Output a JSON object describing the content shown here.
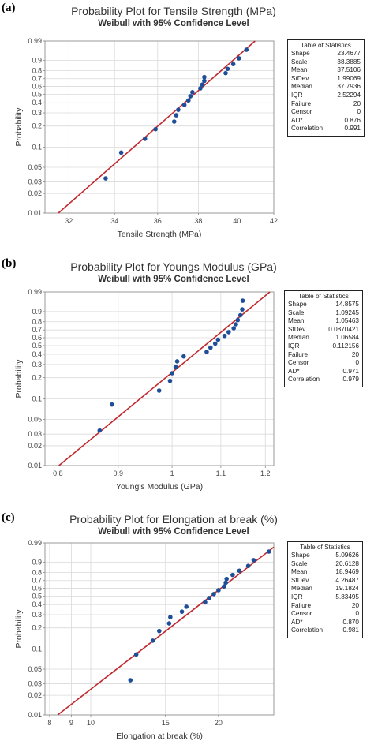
{
  "colors": {
    "fit_line": "#c0282d",
    "points": "#1f4e99",
    "grid": "#dadada"
  },
  "chart_data": [
    {
      "type": "scatter",
      "panel_label": "(a)",
      "title": "Probability Plot for Tensile Strength (MPa)",
      "subtitle": "Weibull with 95% Confidence Level",
      "xlabel": "Tensile Strength (MPa)",
      "ylabel": "Probability",
      "xscale": "log",
      "yscale": "weibull",
      "xlim": [
        31,
        42
      ],
      "ylim": [
        0.01,
        0.99
      ],
      "xticks": [
        32,
        34,
        36,
        38,
        40,
        42
      ],
      "yticks": [
        0.01,
        0.02,
        0.03,
        0.05,
        0.1,
        0.2,
        0.3,
        0.4,
        0.5,
        0.6,
        0.7,
        0.8,
        0.9,
        0.99
      ],
      "grid": true,
      "fit": {
        "shape": 23.4677,
        "scale": 38.3885
      },
      "points": [
        {
          "x": 33.6,
          "y": 0.034
        },
        {
          "x": 34.3,
          "y": 0.083
        },
        {
          "x": 35.4,
          "y": 0.132
        },
        {
          "x": 35.9,
          "y": 0.181
        },
        {
          "x": 36.8,
          "y": 0.23
        },
        {
          "x": 36.9,
          "y": 0.279
        },
        {
          "x": 37.0,
          "y": 0.328
        },
        {
          "x": 37.3,
          "y": 0.377
        },
        {
          "x": 37.5,
          "y": 0.426
        },
        {
          "x": 37.6,
          "y": 0.475
        },
        {
          "x": 37.7,
          "y": 0.525
        },
        {
          "x": 38.1,
          "y": 0.574
        },
        {
          "x": 38.2,
          "y": 0.623
        },
        {
          "x": 38.3,
          "y": 0.672
        },
        {
          "x": 38.3,
          "y": 0.721
        },
        {
          "x": 39.4,
          "y": 0.77
        },
        {
          "x": 39.5,
          "y": 0.819
        },
        {
          "x": 39.8,
          "y": 0.868
        },
        {
          "x": 40.1,
          "y": 0.917
        },
        {
          "x": 40.5,
          "y": 0.966
        }
      ],
      "stats": {
        "title": "Table of Statistics",
        "rows": [
          [
            "Shape",
            "23.4677"
          ],
          [
            "Scale",
            "38.3885"
          ],
          [
            "Mean",
            "37.5106"
          ],
          [
            "StDev",
            "1.99069"
          ],
          [
            "Median",
            "37.7936"
          ],
          [
            "IQR",
            "2.52294"
          ],
          [
            "Failure",
            "20"
          ],
          [
            "Censor",
            "0"
          ],
          [
            "AD*",
            "0.876"
          ],
          [
            "Correlation",
            "0.991"
          ]
        ]
      }
    },
    {
      "type": "scatter",
      "panel_label": "(b)",
      "title": "Probability Plot for Youngs Modulus (GPa)",
      "subtitle": "Weibull with 95% Confidence Level",
      "xlabel": "Young's Modulus (GPa)",
      "ylabel": "Probability",
      "xscale": "log",
      "yscale": "weibull",
      "xlim": [
        0.78,
        1.22
      ],
      "ylim": [
        0.01,
        0.99
      ],
      "xticks": [
        0.8,
        0.9,
        1.0,
        1.1,
        1.2
      ],
      "xticklabels": [
        "0.8",
        "0.9",
        "1",
        "1.1",
        "1.2"
      ],
      "yticks": [
        0.01,
        0.02,
        0.03,
        0.05,
        0.1,
        0.2,
        0.3,
        0.4,
        0.5,
        0.6,
        0.7,
        0.8,
        0.9,
        0.99
      ],
      "grid": true,
      "fit": {
        "shape": 14.8575,
        "scale": 1.09245
      },
      "points": [
        {
          "x": 0.868,
          "y": 0.034
        },
        {
          "x": 0.889,
          "y": 0.083
        },
        {
          "x": 0.975,
          "y": 0.132
        },
        {
          "x": 0.996,
          "y": 0.181
        },
        {
          "x": 1.0,
          "y": 0.23
        },
        {
          "x": 1.007,
          "y": 0.279
        },
        {
          "x": 1.01,
          "y": 0.328
        },
        {
          "x": 1.023,
          "y": 0.377
        },
        {
          "x": 1.07,
          "y": 0.426
        },
        {
          "x": 1.078,
          "y": 0.475
        },
        {
          "x": 1.088,
          "y": 0.525
        },
        {
          "x": 1.094,
          "y": 0.574
        },
        {
          "x": 1.108,
          "y": 0.623
        },
        {
          "x": 1.117,
          "y": 0.672
        },
        {
          "x": 1.128,
          "y": 0.721
        },
        {
          "x": 1.133,
          "y": 0.77
        },
        {
          "x": 1.137,
          "y": 0.819
        },
        {
          "x": 1.143,
          "y": 0.868
        },
        {
          "x": 1.147,
          "y": 0.917
        },
        {
          "x": 1.148,
          "y": 0.966
        }
      ],
      "stats": {
        "title": "Table of Statistics",
        "rows": [
          [
            "Shape",
            "14.8575"
          ],
          [
            "Scale",
            "1.09245"
          ],
          [
            "Mean",
            "1.05463"
          ],
          [
            "StDev",
            "0.0870421"
          ],
          [
            "Median",
            "1.06584"
          ],
          [
            "IQR",
            "0.112156"
          ],
          [
            "Failure",
            "20"
          ],
          [
            "Censor",
            "0"
          ],
          [
            "AD*",
            "0.971"
          ],
          [
            "Correlation",
            "0.979"
          ]
        ]
      }
    },
    {
      "type": "scatter",
      "panel_label": "(c)",
      "title": "Probability Plot for Elongation at break (%)",
      "subtitle": "Weibull with 95% Confidence Level",
      "xlabel": "Elongation at break (%)",
      "ylabel": "Probability",
      "xscale": "log",
      "yscale": "weibull",
      "xlim": [
        7.8,
        27
      ],
      "ylim": [
        0.01,
        0.99
      ],
      "xticks": [
        8,
        9,
        10,
        15,
        20
      ],
      "yticks": [
        0.01,
        0.02,
        0.03,
        0.05,
        0.1,
        0.2,
        0.3,
        0.4,
        0.5,
        0.6,
        0.7,
        0.8,
        0.9,
        0.99
      ],
      "grid": true,
      "fit": {
        "shape": 5.09626,
        "scale": 20.6128
      },
      "points": [
        {
          "x": 12.4,
          "y": 0.034
        },
        {
          "x": 12.8,
          "y": 0.083
        },
        {
          "x": 14.0,
          "y": 0.132
        },
        {
          "x": 14.5,
          "y": 0.181
        },
        {
          "x": 15.3,
          "y": 0.23
        },
        {
          "x": 15.4,
          "y": 0.279
        },
        {
          "x": 16.4,
          "y": 0.328
        },
        {
          "x": 16.8,
          "y": 0.377
        },
        {
          "x": 18.6,
          "y": 0.426
        },
        {
          "x": 19.0,
          "y": 0.475
        },
        {
          "x": 19.5,
          "y": 0.525
        },
        {
          "x": 20.0,
          "y": 0.574
        },
        {
          "x": 20.6,
          "y": 0.623
        },
        {
          "x": 20.8,
          "y": 0.672
        },
        {
          "x": 20.9,
          "y": 0.721
        },
        {
          "x": 21.6,
          "y": 0.77
        },
        {
          "x": 22.4,
          "y": 0.819
        },
        {
          "x": 23.5,
          "y": 0.868
        },
        {
          "x": 24.2,
          "y": 0.917
        },
        {
          "x": 26.3,
          "y": 0.966
        }
      ],
      "stats": {
        "title": "Table of Statistics",
        "rows": [
          [
            "Shape",
            "5.09626"
          ],
          [
            "Scale",
            "20.6128"
          ],
          [
            "Mean",
            "18.9469"
          ],
          [
            "StDev",
            "4.26487"
          ],
          [
            "Median",
            "19.1824"
          ],
          [
            "IQR",
            "5.83495"
          ],
          [
            "Failure",
            "20"
          ],
          [
            "Censor",
            "0"
          ],
          [
            "AD*",
            "0.870"
          ],
          [
            "Correlation",
            "0.981"
          ]
        ]
      }
    }
  ]
}
